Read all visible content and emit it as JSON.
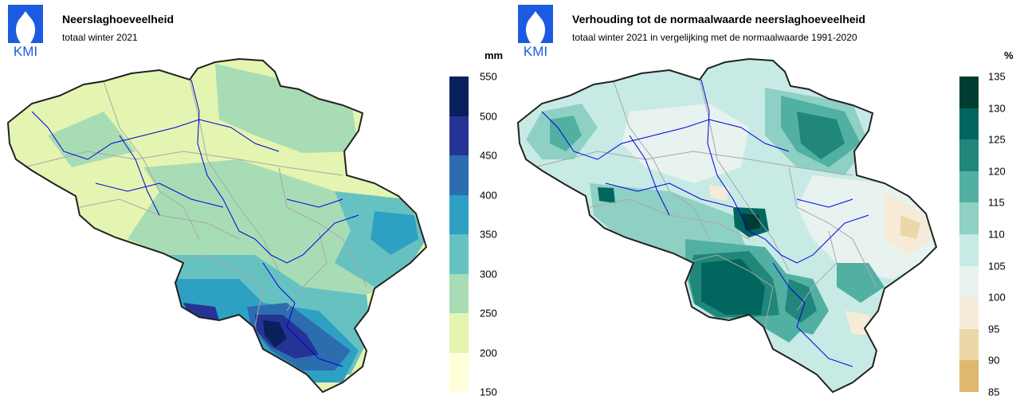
{
  "left": {
    "logo_text": "KMI",
    "title": "Neerslaghoeveelheid",
    "subtitle": "totaal winter 2021",
    "unit": "mm",
    "legend_ticks": [
      "550",
      "500",
      "450",
      "400",
      "350",
      "300",
      "250",
      "200",
      "150"
    ],
    "legend_colors": [
      "#08205c",
      "#253494",
      "#2c6db0",
      "#2ea0c4",
      "#66c2c0",
      "#a8dcb5",
      "#e3f5b0",
      "#ffffd9"
    ]
  },
  "right": {
    "logo_text": "KMI",
    "title": "Verhouding tot de normaalwaarde neerslaghoeveelheid",
    "subtitle": "totaal winter 2021 in vergelijking met de normaalwaarde 1991-2020",
    "unit": "%",
    "legend_ticks": [
      "135",
      "130",
      "125",
      "120",
      "115",
      "110",
      "105",
      "100",
      "95",
      "90",
      "85"
    ],
    "legend_colors": [
      "#003c30",
      "#01665e",
      "#20877a",
      "#52b0a3",
      "#8fd0c4",
      "#c7eae5",
      "#e8f2ef",
      "#f6ebd8",
      "#ebd7a8",
      "#dfb870"
    ]
  },
  "colors": {
    "logo_blue": "#1a5be0",
    "border": "#222222",
    "rivers": "#0000dd",
    "provinces": "#a8a8a8"
  }
}
